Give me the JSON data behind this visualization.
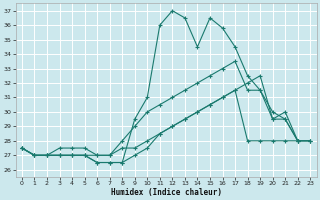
{
  "xlabel": "Humidex (Indice chaleur)",
  "xlim": [
    -0.5,
    23.5
  ],
  "ylim": [
    25.5,
    37.5
  ],
  "yticks": [
    26,
    27,
    28,
    29,
    30,
    31,
    32,
    33,
    34,
    35,
    36,
    37
  ],
  "xticks": [
    0,
    1,
    2,
    3,
    4,
    5,
    6,
    7,
    8,
    9,
    10,
    11,
    12,
    13,
    14,
    15,
    16,
    17,
    18,
    19,
    20,
    21,
    22,
    23
  ],
  "bg_color": "#cce8ed",
  "grid_color": "#ffffff",
  "line_color": "#1a7a6e",
  "series": [
    {
      "x": [
        0,
        1,
        2,
        3,
        4,
        5,
        6,
        7,
        8,
        9,
        10,
        11,
        12,
        13,
        14,
        15,
        16,
        17,
        18,
        19,
        20,
        21,
        22,
        23
      ],
      "y": [
        27.5,
        27.0,
        27.0,
        27.0,
        27.0,
        27.0,
        26.5,
        26.5,
        26.5,
        27.0,
        27.5,
        28.5,
        29.0,
        29.5,
        30.0,
        30.5,
        31.0,
        31.5,
        32.0,
        32.5,
        29.5,
        29.5,
        28.0,
        28.0
      ]
    },
    {
      "x": [
        0,
        1,
        2,
        3,
        4,
        5,
        6,
        7,
        8,
        9,
        10,
        11,
        12,
        13,
        14,
        15,
        16,
        17,
        18,
        19,
        20,
        21,
        22
      ],
      "y": [
        27.5,
        27.0,
        27.0,
        27.0,
        27.0,
        27.0,
        26.5,
        26.5,
        26.5,
        29.5,
        31.0,
        36.0,
        37.0,
        36.5,
        34.5,
        36.5,
        35.8,
        34.5,
        32.5,
        31.5,
        29.5,
        30.0,
        28.0
      ]
    },
    {
      "x": [
        0,
        1,
        2,
        3,
        4,
        5,
        6,
        7,
        8,
        9,
        10,
        11,
        12,
        13,
        14,
        15,
        16,
        17,
        18,
        19,
        20,
        21,
        22,
        23
      ],
      "y": [
        27.5,
        27.0,
        27.0,
        27.5,
        27.5,
        27.5,
        27.0,
        27.0,
        28.0,
        29.0,
        30.0,
        30.5,
        31.0,
        31.5,
        32.0,
        32.5,
        33.0,
        33.5,
        31.5,
        31.5,
        30.0,
        29.5,
        28.0,
        28.0
      ]
    },
    {
      "x": [
        0,
        1,
        2,
        3,
        4,
        5,
        6,
        7,
        8,
        9,
        10,
        11,
        12,
        13,
        14,
        15,
        16,
        17,
        18,
        19,
        20,
        21,
        22,
        23
      ],
      "y": [
        27.5,
        27.0,
        27.0,
        27.0,
        27.0,
        27.0,
        27.0,
        27.0,
        27.5,
        27.5,
        28.0,
        28.5,
        29.0,
        29.5,
        30.0,
        30.5,
        31.0,
        31.5,
        28.0,
        28.0,
        28.0,
        28.0,
        28.0,
        28.0
      ]
    }
  ]
}
